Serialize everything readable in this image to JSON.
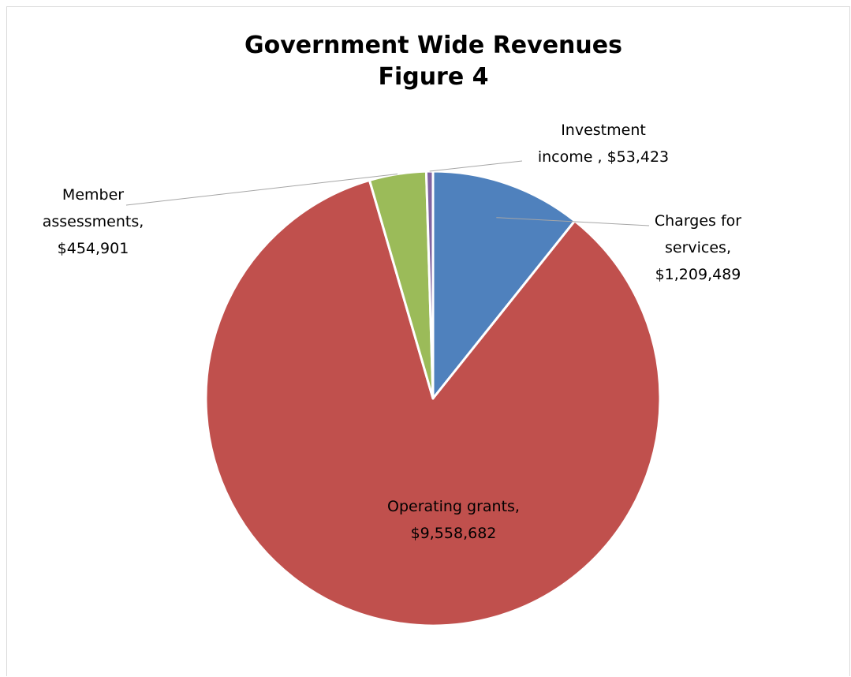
{
  "chart_data": {
    "type": "pie",
    "title": "Government Wide Revenues",
    "subtitle": "Figure 4",
    "slices": [
      {
        "name": "Charges for services,",
        "value_label": "$1,209,489",
        "value": 1209489,
        "color": "#4F81BD"
      },
      {
        "name": "Operating grants,",
        "value_label": "$9,558,682",
        "value": 9558682,
        "color": "#C0504D"
      },
      {
        "name": "Member assessments,",
        "value_label": "$454,901",
        "value": 454901,
        "color": "#9BBB59"
      },
      {
        "name": "Investment income ,",
        "value_label": "$53,423",
        "value": 53423,
        "color": "#8064A2"
      }
    ],
    "labels": [
      {
        "lines": [
          "Charges for",
          "services,",
          "$1,209,489"
        ]
      },
      {
        "lines": [
          "Operating grants,",
          "$9,558,682"
        ]
      },
      {
        "lines": [
          "Member",
          "assessments,",
          "$454,901"
        ]
      },
      {
        "lines": [
          "Investment",
          "income ,  $53,423"
        ]
      }
    ],
    "legend": "none"
  }
}
